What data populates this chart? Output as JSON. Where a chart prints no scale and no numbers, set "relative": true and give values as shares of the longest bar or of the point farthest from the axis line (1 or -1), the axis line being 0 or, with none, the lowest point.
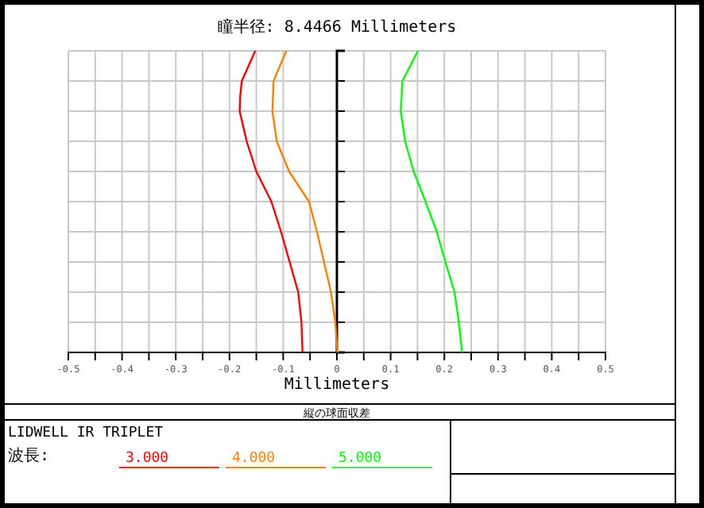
{
  "chart_data": {
    "type": "line",
    "title": "瞳半径: 8.4466 Millimeters",
    "xlabel": "Millimeters",
    "legend_title": "波長:",
    "annotations": [
      "縦の球面収差",
      "LIDWELL IR TRIPLET"
    ],
    "xlim": [
      -0.5,
      0.5
    ],
    "relative": true,
    "xticks": [
      -0.5,
      {
        "value": -0.45,
        "label": null
      },
      -0.4,
      {
        "value": -0.35,
        "label": null
      },
      -0.3,
      {
        "value": -0.25,
        "label": null
      },
      -0.2,
      {
        "value": -0.15,
        "label": null
      },
      -0.1,
      {
        "value": -0.05,
        "label": null
      },
      0,
      {
        "value": 0.05,
        "label": null
      },
      0.1,
      {
        "value": 0.15,
        "label": null
      },
      0.2,
      {
        "value": 0.25,
        "label": null
      },
      0.3,
      {
        "value": 0.35,
        "label": null
      },
      0.4,
      {
        "value": 0.45,
        "label": null
      },
      0.5
    ],
    "tick_labels": "x",
    "grid": true,
    "legend": "bottom",
    "marker": "none",
    "line_style": "solid",
    "series": [
      {
        "name": "3.000",
        "color": "#ff0000",
        "x": [
          -0.064,
          -0.066,
          -0.072,
          -0.088,
          -0.104,
          -0.122,
          -0.15,
          -0.168,
          -0.181,
          -0.18,
          -0.177,
          -0.152
        ],
        "values": [
          0,
          0.1,
          0.2,
          0.3,
          0.4,
          0.5,
          0.6,
          0.7,
          0.8,
          0.85,
          0.9,
          1
        ]
      },
      {
        "name": "4.000",
        "color": "#ff8000",
        "x": [
          0.001,
          -0.003,
          -0.011,
          -0.024,
          -0.037,
          -0.052,
          -0.089,
          -0.112,
          -0.12,
          -0.118,
          -0.094
        ],
        "values": [
          0,
          0.1,
          0.2,
          0.3,
          0.4,
          0.5,
          0.6,
          0.7,
          0.8,
          0.9,
          1
        ]
      },
      {
        "name": "5.000",
        "color": "#00ff00",
        "x": [
          0.233,
          0.227,
          0.219,
          0.202,
          0.186,
          0.165,
          0.143,
          0.127,
          0.119,
          0.122,
          0.151
        ],
        "values": [
          0,
          0.1,
          0.2,
          0.3,
          0.4,
          0.5,
          0.6,
          0.7,
          0.8,
          0.9,
          1
        ]
      }
    ]
  }
}
